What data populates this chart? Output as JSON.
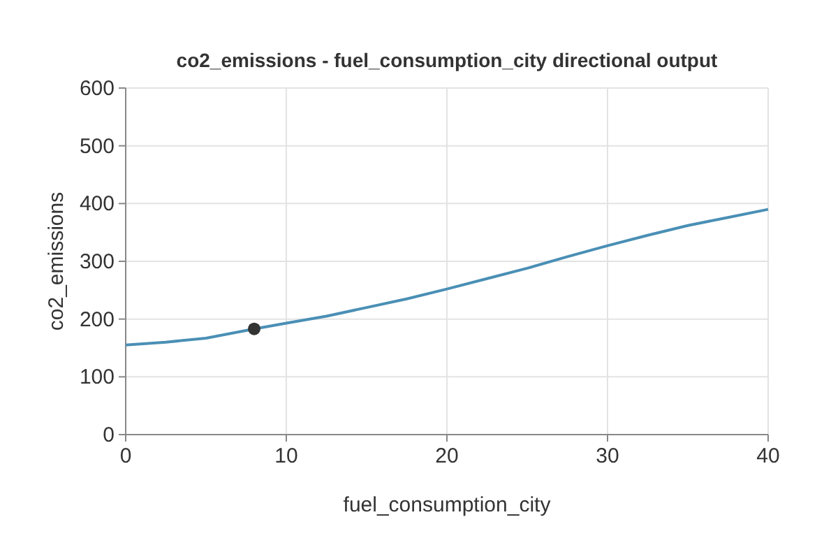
{
  "chart_data": {
    "type": "line",
    "title": "co2_emissions - fuel_consumption_city directional output",
    "xlabel": "fuel_consumption_city",
    "ylabel": "co2_emissions",
    "xlim": [
      0,
      40
    ],
    "xticks": [
      0,
      10,
      20,
      30,
      40
    ],
    "ylim": [
      0,
      600
    ],
    "yticks": [
      0,
      100,
      200,
      300,
      400,
      500,
      600
    ],
    "grid": true,
    "series": [
      {
        "color": "#4a8fb5",
        "x": [
          0,
          2.5,
          5,
          8,
          10,
          12.5,
          15,
          17.5,
          20,
          22.5,
          25,
          27.5,
          30,
          32.5,
          35,
          37.5,
          40
        ],
        "values": [
          155,
          160,
          167,
          183,
          193,
          205,
          220,
          235,
          252,
          270,
          288,
          308,
          327,
          345,
          362,
          376,
          390
        ]
      },
      {
        "type": "scatter",
        "color": "#333333",
        "x": [
          8
        ],
        "values": [
          183
        ]
      }
    ]
  }
}
